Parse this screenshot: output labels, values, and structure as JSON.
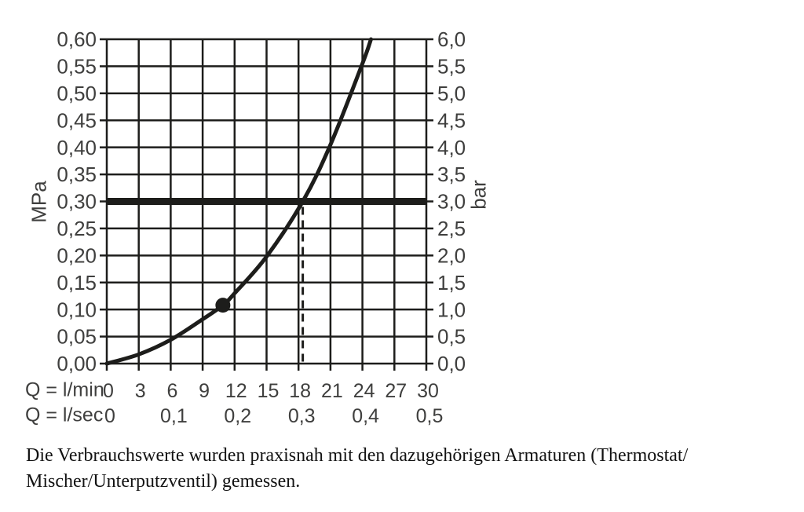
{
  "chart_data": {
    "type": "line",
    "title": "",
    "grid": true,
    "x_axis_primary": {
      "label": "Q = l/min",
      "ticks": [
        "0",
        "3",
        "6",
        "9",
        "12",
        "15",
        "18",
        "21",
        "24",
        "27",
        "30"
      ],
      "tick_values_lmin": [
        0,
        3,
        6,
        9,
        12,
        15,
        18,
        21,
        24,
        27,
        30
      ],
      "range_lmin": [
        0,
        30
      ]
    },
    "x_axis_secondary": {
      "label": "Q = l/sec",
      "ticks": [
        "0",
        "0,1",
        "0,2",
        "0,3",
        "0,4",
        "0,5"
      ],
      "tick_values_lmin": [
        0,
        6,
        12,
        18,
        24,
        30
      ]
    },
    "y_axis_left": {
      "label": "MPa",
      "ticks": [
        "0,00",
        "0,05",
        "0,10",
        "0,15",
        "0,20",
        "0,25",
        "0,30",
        "0,35",
        "0,40",
        "0,45",
        "0,50",
        "0,55",
        "0,60"
      ],
      "range_mpa": [
        0,
        0.6
      ],
      "step_mpa": 0.05
    },
    "y_axis_right": {
      "label": "bar",
      "ticks": [
        "0,0",
        "0,5",
        "1,0",
        "1,5",
        "2,0",
        "2,5",
        "3,0",
        "3,5",
        "4,0",
        "4,5",
        "5,0",
        "5,5",
        "6,0"
      ],
      "range_bar": [
        0,
        6
      ],
      "step_bar": 0.5
    },
    "series": [
      {
        "name": "pressure-flow-curve",
        "points_lmin_mpa": [
          [
            0,
            0.0
          ],
          [
            3,
            0.017
          ],
          [
            6,
            0.044
          ],
          [
            9,
            0.082
          ],
          [
            10.9,
            0.108
          ],
          [
            12,
            0.13
          ],
          [
            15,
            0.198
          ],
          [
            18.4,
            0.3
          ],
          [
            21,
            0.405
          ],
          [
            24,
            0.555
          ],
          [
            24.8,
            0.6
          ]
        ]
      }
    ],
    "annotations": {
      "reference_line": {
        "type": "horizontal-bold",
        "mpa": 0.3,
        "bar": 3.0
      },
      "guide_line": {
        "type": "vertical-dashed",
        "lmin": 18.4,
        "from_mpa": 0.0,
        "to_mpa": 0.3
      },
      "marker_point": {
        "lmin": 10.9,
        "mpa": 0.108
      }
    }
  },
  "caption": {
    "line1": "Die Verbrauchswerte wurden praxisnah mit den dazugehörigen Armaturen (Thermostat/",
    "line2": "Mischer/Unterputzventil) gemessen."
  },
  "colors": {
    "ink": "#1d1d1b",
    "text": "#3f3f3e",
    "background": "#ffffff"
  }
}
